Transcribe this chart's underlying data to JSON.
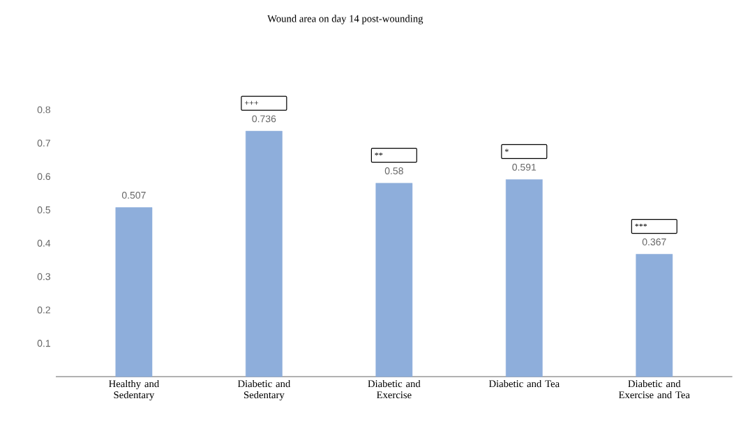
{
  "chart_data": {
    "type": "bar",
    "title": "Wound  area on day 14 post-wounding",
    "categories": [
      "Healthy and Sedentary",
      "Diabetic and Sedentary",
      "Diabetic and Exercise",
      "Diabetic and Tea",
      "Diabetic and Exercise and Tea"
    ],
    "values": [
      0.507,
      0.736,
      0.58,
      0.591,
      0.367
    ],
    "color": "#8eaedb",
    "ylim": [
      0,
      0.8
    ],
    "yticks": [
      0.1,
      0.2,
      0.3,
      0.4,
      0.5,
      0.6,
      0.7,
      0.8
    ],
    "data_labels": true,
    "annotations": [
      "+++",
      "**",
      "*",
      "***"
    ]
  }
}
